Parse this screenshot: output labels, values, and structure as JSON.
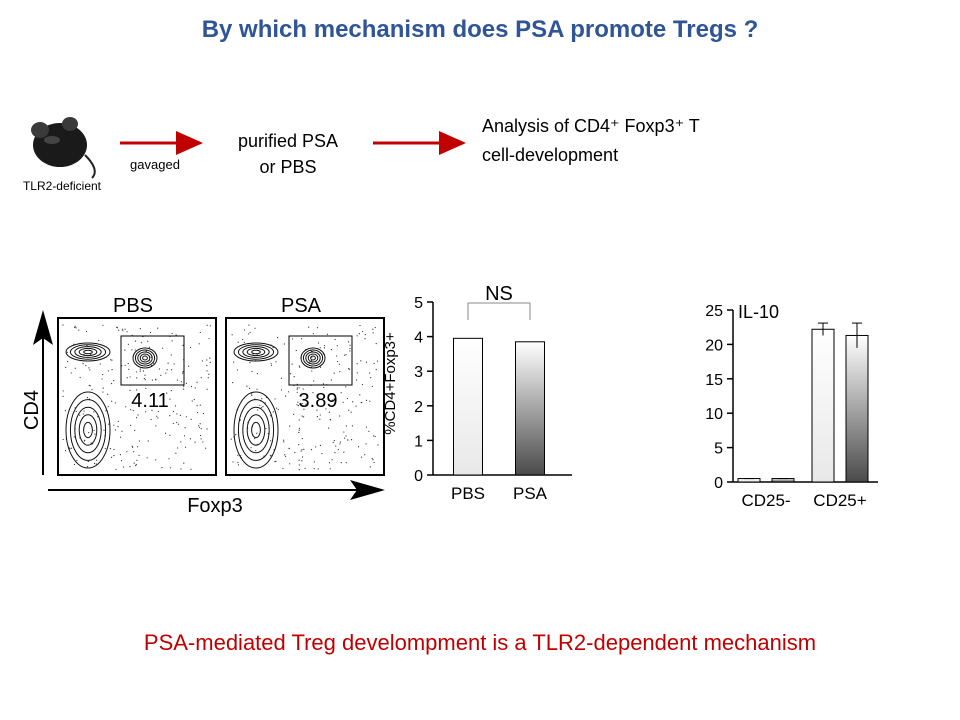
{
  "title": "By which mechanism does PSA promote Tregs ?",
  "workflow": {
    "mouse_label": "TLR2-deficient",
    "step": "gavaged",
    "treatment": [
      "purified PSA",
      "or PBS"
    ],
    "analysis": [
      "Analysis of CD4⁺ Foxp3⁺ T",
      "cell-development"
    ]
  },
  "flow": {
    "panels": [
      {
        "label": "PBS",
        "gate_value": 4.11
      },
      {
        "label": "PSA",
        "gate_value": 3.89
      }
    ],
    "y_label": "CD4",
    "x_label": "Foxp3"
  },
  "chart_data": [
    {
      "type": "bar",
      "ylabel": "%CD4+Foxp3+",
      "annotation": "NS",
      "categories": [
        "PBS",
        "PSA"
      ],
      "values": [
        3.95,
        3.85
      ],
      "colors": [
        "#e8e8e8",
        "#4a4a4a"
      ],
      "ylim": [
        0,
        5
      ],
      "yticks": [
        0,
        1,
        2,
        3,
        4,
        5
      ]
    },
    {
      "type": "grouped_bar",
      "annotation": "IL-10",
      "categories": [
        "CD25-",
        "CD25+"
      ],
      "series": [
        {
          "color": "#e8e8e8",
          "values": [
            0.5,
            22.2
          ],
          "errors": [
            0,
            0.9
          ]
        },
        {
          "color": "#4a4a4a",
          "values": [
            0.5,
            21.3
          ],
          "errors": [
            0,
            1.8
          ]
        }
      ],
      "ylim": [
        0,
        25
      ],
      "yticks": [
        0,
        5,
        10,
        15,
        20,
        25
      ]
    }
  ],
  "conclusion": "PSA-mediated Treg develompment is a TLR2-dependent mechanism"
}
